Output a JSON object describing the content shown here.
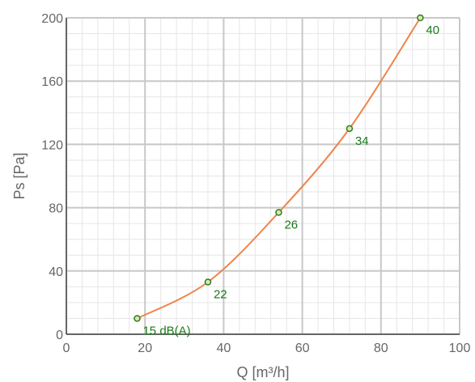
{
  "chart_data": {
    "type": "line",
    "title": "",
    "xlabel": "Q [m³/h]",
    "ylabel": "Ps [Pa]",
    "xlim": [
      0,
      100
    ],
    "ylim": [
      0,
      200
    ],
    "x_ticks": [
      0,
      20,
      40,
      60,
      80,
      100
    ],
    "y_ticks": [
      0,
      40,
      80,
      120,
      160,
      200
    ],
    "x_tick_labels": [
      "0",
      "20",
      "40",
      "60",
      "80",
      "100"
    ],
    "y_tick_labels": [
      "0",
      "40",
      "80",
      "120",
      "160",
      "200"
    ],
    "grid": true,
    "minor_grid": true,
    "series": [
      {
        "color": "#f0834a",
        "marker_color": "#2e7d1e",
        "points": [
          {
            "x": 18,
            "y": 10,
            "label": "15 dB(A)"
          },
          {
            "x": 36,
            "y": 33,
            "label": "22"
          },
          {
            "x": 54,
            "y": 77,
            "label": "26"
          },
          {
            "x": 72,
            "y": 130,
            "label": "34"
          },
          {
            "x": 90,
            "y": 200,
            "label": "40"
          }
        ]
      }
    ]
  }
}
